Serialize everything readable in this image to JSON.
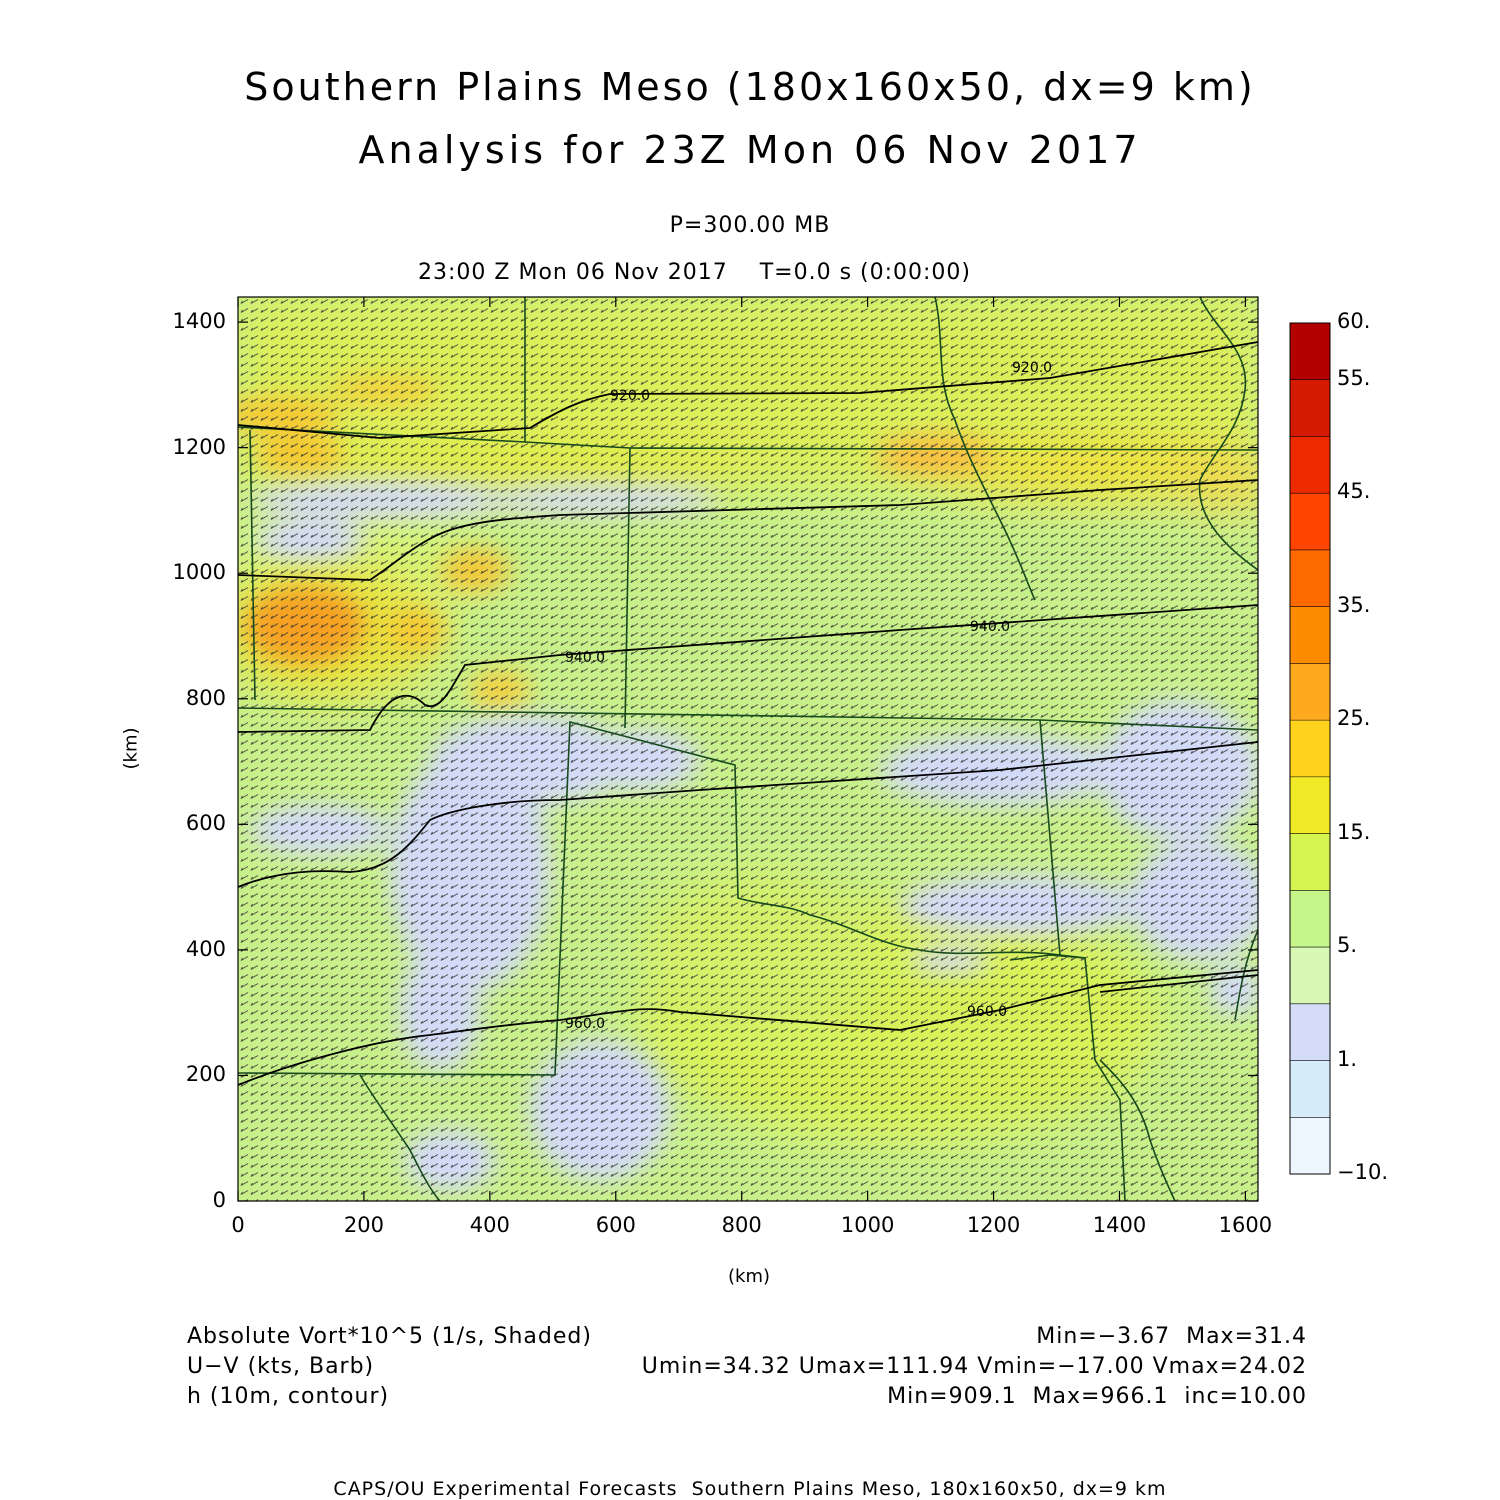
{
  "header": {
    "title_line1": "Southern Plains Meso (180x160x50, dx=9 km)",
    "title_line2": "Analysis for 23Z Mon 06 Nov 2017",
    "level": "P=300.00 MB",
    "valid_time": "23:00 Z Mon 06 Nov 2017    T=0.0 s (0:00:00)"
  },
  "axes": {
    "x_label": "(km)",
    "y_label": "(km)",
    "x_ticks": [
      "0",
      "200",
      "400",
      "600",
      "800",
      "1000",
      "1200",
      "1400",
      "1600"
    ],
    "y_ticks": [
      "0",
      "200",
      "400",
      "600",
      "800",
      "1000",
      "1200",
      "1400"
    ],
    "xlim": [
      0,
      1620
    ],
    "ylim": [
      0,
      1440
    ]
  },
  "colorbar": {
    "labels": [
      "60.",
      "55.",
      "45.",
      "35.",
      "25.",
      "15.",
      "5.",
      "1.",
      "−10."
    ],
    "colors": [
      "#b30000",
      "#d41a00",
      "#ee2a00",
      "#ff4500",
      "#ff6a00",
      "#ff8c00",
      "#ffaa1e",
      "#ffd21e",
      "#f0ea28",
      "#d7f550",
      "#c6f58a",
      "#d8f8b6",
      "#d4dcf8",
      "#d6ecfa",
      "#eef7ff"
    ]
  },
  "contours": [
    {
      "label": "920.0"
    },
    {
      "label": "920.0"
    },
    {
      "label": "940.0"
    },
    {
      "label": "940.0"
    },
    {
      "label": "960.0"
    },
    {
      "label": "960.0"
    }
  ],
  "legend": {
    "field1_name": "Absolute Vort*10^5 (1/s, Shaded)",
    "field1_stats": "Min=−3.67  Max=31.4",
    "field2_name": "U−V (kts, Barb)",
    "field2_stats": "Umin=34.32 Umax=111.94 Vmin=−17.00 Vmax=24.02",
    "field3_name": "h (10m, contour)",
    "field3_stats": "Min=909.1  Max=966.1  inc=10.00"
  },
  "footer": "CAPS/OU Experimental Forecasts  Southern Plains Meso, 180x160x50, dx=9 km"
}
